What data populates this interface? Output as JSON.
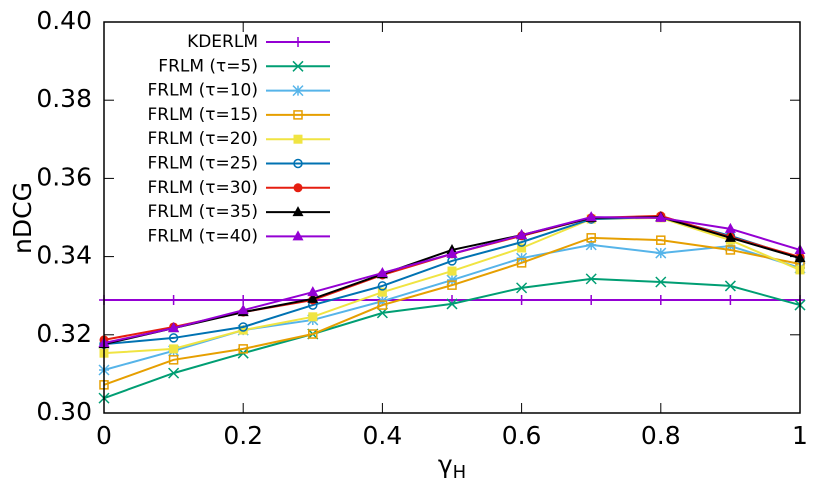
{
  "chart_data": {
    "type": "line",
    "xlabel": {
      "text": "γ",
      "subscript": "H"
    },
    "ylabel": "nDCG",
    "x": [
      0,
      0.1,
      0.2,
      0.3,
      0.4,
      0.5,
      0.6,
      0.7,
      0.8,
      0.9,
      1
    ],
    "xlim": [
      0,
      1
    ],
    "xticks": [
      0,
      0.2,
      0.4,
      0.6,
      0.8,
      1
    ],
    "ylim": [
      0.3,
      0.4
    ],
    "yticks": [
      {
        "value": 0.3,
        "label": "0.30"
      },
      0.32,
      0.34,
      0.36,
      0.38,
      {
        "value": 0.4,
        "label": "0.40"
      }
    ],
    "legend": "top-left",
    "series": [
      {
        "name": "KDERLM",
        "color": "#9400d3",
        "marker": "plus",
        "values": [
          0.3289,
          0.3289,
          0.3289,
          0.3289,
          0.3289,
          0.3289,
          0.3289,
          0.3289,
          0.3289,
          0.3289,
          0.3289
        ]
      },
      {
        "name": "FRLM (τ=5)",
        "color": "#009e73",
        "marker": "cross",
        "values": [
          0.3038,
          0.3102,
          0.3153,
          0.3202,
          0.3256,
          0.3279,
          0.332,
          0.3343,
          0.3335,
          0.3325,
          0.3276
        ]
      },
      {
        "name": "FRLM (τ=10)",
        "color": "#56b4e9",
        "marker": "star",
        "values": [
          0.311,
          0.3159,
          0.3212,
          0.3238,
          0.3286,
          0.334,
          0.3396,
          0.343,
          0.3409,
          0.3427,
          0.3371
        ]
      },
      {
        "name": "FRLM (τ=15)",
        "color": "#e69f00",
        "marker": "square-open",
        "values": [
          0.3072,
          0.3136,
          0.3164,
          0.3202,
          0.3276,
          0.3327,
          0.3384,
          0.3448,
          0.3442,
          0.3417,
          0.3381
        ]
      },
      {
        "name": "FRLM (τ=20)",
        "color": "#f0e442",
        "marker": "square",
        "values": [
          0.3153,
          0.3164,
          0.3212,
          0.3246,
          0.3309,
          0.3363,
          0.3422,
          0.3496,
          0.3499,
          0.3442,
          0.3366
        ]
      },
      {
        "name": "FRLM (τ=25)",
        "color": "#0072b2",
        "marker": "circle-open",
        "values": [
          0.3176,
          0.3192,
          0.322,
          0.3276,
          0.3325,
          0.3389,
          0.3437,
          0.3496,
          0.3501,
          0.3453,
          0.3396
        ]
      },
      {
        "name": "FRLM (τ=30)",
        "color": "#e51e10",
        "marker": "circle",
        "values": [
          0.3187,
          0.322,
          0.3258,
          0.3289,
          0.3353,
          0.3407,
          0.3453,
          0.3499,
          0.3504,
          0.345,
          0.3399
        ]
      },
      {
        "name": "FRLM (τ=35)",
        "color": "#000000",
        "marker": "triangle",
        "values": [
          0.3176,
          0.3217,
          0.3258,
          0.3292,
          0.3355,
          0.3417,
          0.3455,
          0.3499,
          0.3501,
          0.3448,
          0.3396
        ]
      },
      {
        "name": "FRLM (τ=40)",
        "color": "#9400d3",
        "marker": "triangle",
        "values": [
          0.3179,
          0.3217,
          0.3263,
          0.3309,
          0.3358,
          0.3407,
          0.3455,
          0.3501,
          0.3499,
          0.3471,
          0.3417
        ]
      }
    ]
  }
}
